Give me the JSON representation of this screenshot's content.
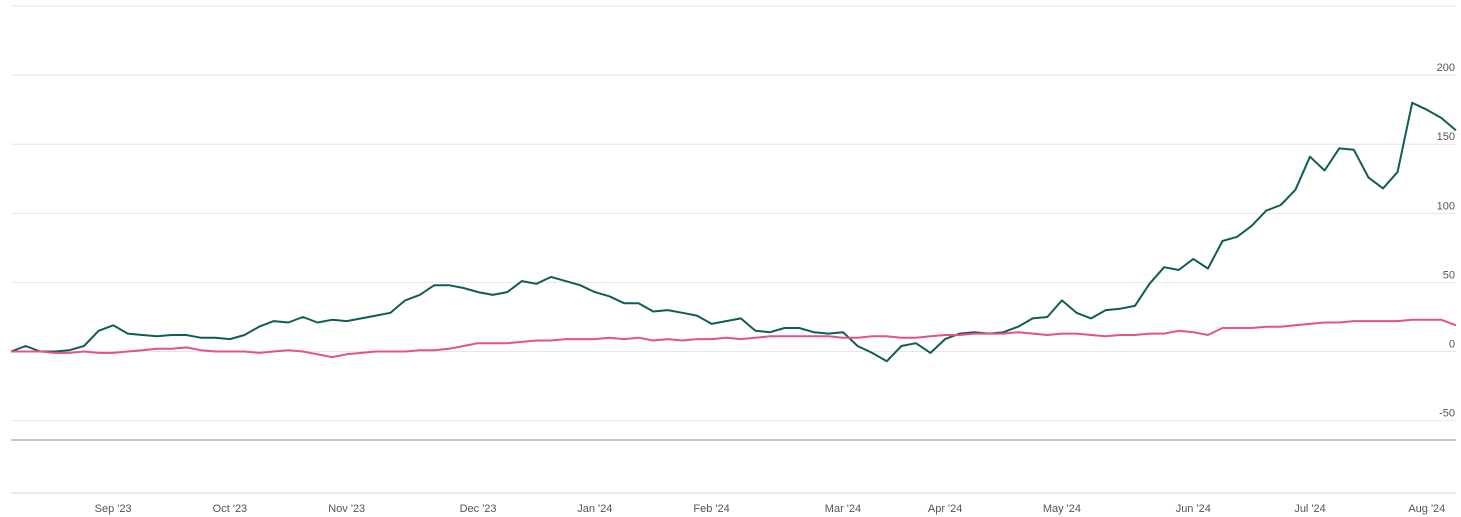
{
  "chart_data": {
    "type": "line",
    "categories": [
      null,
      null,
      null,
      null,
      null,
      null,
      null,
      "Sep '23",
      null,
      null,
      null,
      null,
      null,
      null,
      null,
      "Oct '23",
      null,
      null,
      null,
      null,
      null,
      null,
      null,
      "Nov '23",
      null,
      null,
      null,
      null,
      null,
      null,
      null,
      null,
      "Dec '23",
      null,
      null,
      null,
      null,
      null,
      null,
      null,
      "Jan '24",
      null,
      null,
      null,
      null,
      null,
      null,
      null,
      "Feb '24",
      null,
      null,
      null,
      null,
      null,
      null,
      null,
      null,
      "Mar '24",
      null,
      null,
      null,
      null,
      null,
      null,
      "Apr '24",
      null,
      null,
      null,
      null,
      null,
      null,
      null,
      "May '24",
      null,
      null,
      null,
      null,
      null,
      null,
      null,
      null,
      "Jun '24",
      null,
      null,
      null,
      null,
      null,
      null,
      null,
      "Jul '24",
      null,
      null,
      null,
      null,
      null,
      null,
      null,
      "Aug '24",
      null,
      null
    ],
    "series": [
      {
        "color": "#0f5e56",
        "values": [
          0,
          4,
          0,
          0,
          1,
          4,
          15,
          19,
          13,
          12,
          11,
          12,
          12,
          10,
          10,
          9,
          12,
          18,
          22,
          21,
          25,
          21,
          23,
          22,
          24,
          26,
          28,
          37,
          41,
          48,
          48,
          46,
          43,
          41,
          43,
          51,
          49,
          54,
          51,
          48,
          43,
          40,
          35,
          35,
          29,
          30,
          28,
          26,
          20,
          22,
          24,
          15,
          14,
          17,
          17,
          14,
          13,
          14,
          4,
          -1,
          -7,
          4,
          6,
          -1,
          9,
          13,
          14,
          13,
          14,
          18,
          24,
          25,
          37,
          28,
          24,
          30,
          31,
          33,
          49,
          61,
          59,
          67,
          60,
          80,
          83,
          91,
          102,
          106,
          117,
          141,
          131,
          147,
          146,
          126,
          118,
          130,
          180,
          175,
          169,
          160
        ]
      },
      {
        "color": "#e8508a",
        "values": [
          0,
          0,
          0,
          -1,
          -1,
          0,
          -1,
          -1,
          0,
          1,
          2,
          2,
          3,
          1,
          0,
          0,
          0,
          -1,
          0,
          1,
          0,
          -2,
          -4,
          -2,
          -1,
          0,
          0,
          0,
          1,
          1,
          2,
          4,
          6,
          6,
          6,
          7,
          8,
          8,
          9,
          9,
          9,
          10,
          9,
          10,
          8,
          9,
          8,
          9,
          9,
          10,
          9,
          10,
          11,
          11,
          11,
          11,
          11,
          10,
          10,
          11,
          11,
          10,
          10,
          11,
          12,
          12,
          13,
          13,
          13,
          14,
          13,
          12,
          13,
          13,
          12,
          11,
          12,
          12,
          13,
          13,
          15,
          14,
          12,
          17,
          17,
          17,
          18,
          18,
          19,
          20,
          21,
          21,
          22,
          22,
          22,
          22,
          23,
          23,
          23,
          19
        ]
      }
    ],
    "ylim": [
      -64,
      250
    ],
    "yticks": [
      -50,
      0,
      50,
      100,
      150,
      200
    ],
    "grid": true
  }
}
